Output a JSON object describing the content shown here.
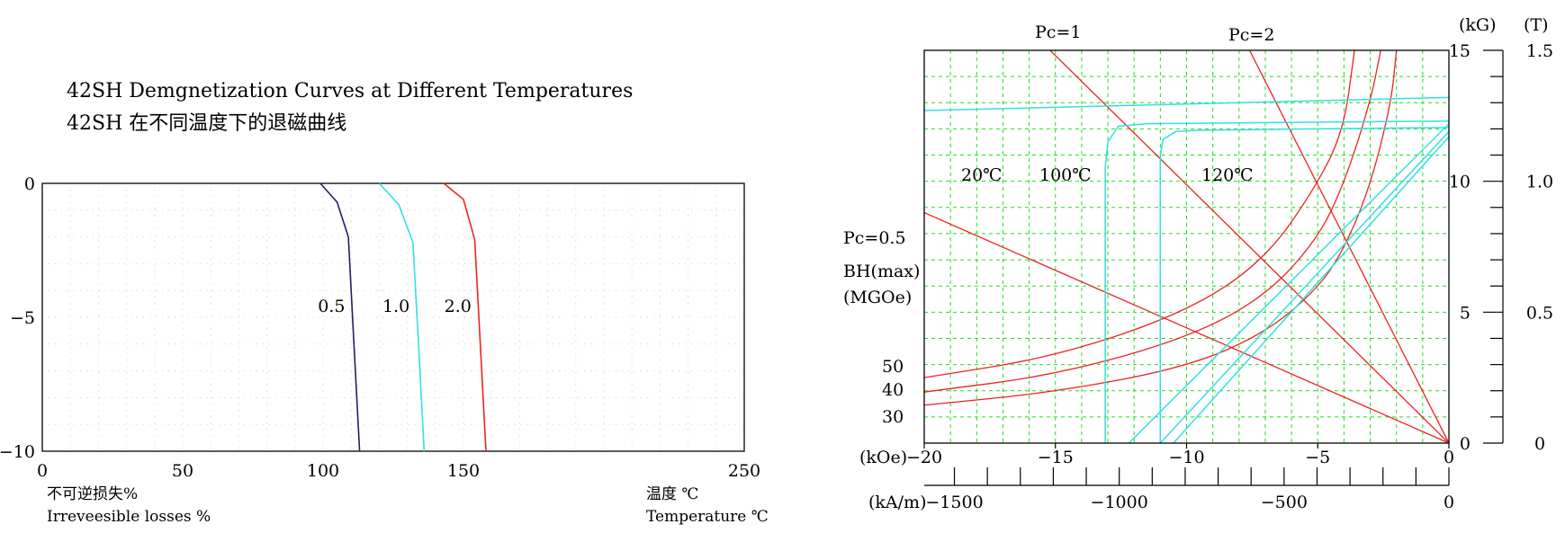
{
  "chart_data": [
    {
      "type": "line",
      "title": "42SH Demgnetization Curves at Different Temperatures",
      "subtitle": "42SH 在不同温度下的退磁曲线",
      "xlabel": "温度 ℃",
      "xlabel_en": "Temperature ℃",
      "ylabel": "不可逆损失%",
      "ylabel_en": "Irreveesible losses %",
      "xlim": [
        0,
        250
      ],
      "ylim": [
        -10,
        0
      ],
      "x_ticks": [
        "0",
        "50",
        "100",
        "150",
        "250"
      ],
      "y_ticks": [
        "0",
        "−5",
        "−10"
      ],
      "grid": true,
      "series": [
        {
          "name": "0.5",
          "color": "#2a1a5e",
          "points": [
            [
              99,
              0
            ],
            [
              105,
              -0.7
            ],
            [
              109,
              -2.0
            ],
            [
              111,
              -6.0
            ],
            [
              113,
              -10
            ]
          ]
        },
        {
          "name": "1.0",
          "color": "#33e0e0",
          "points": [
            [
              120,
              0
            ],
            [
              127,
              -0.8
            ],
            [
              132,
              -2.2
            ],
            [
              134,
              -6.0
            ],
            [
              136,
              -10
            ]
          ]
        },
        {
          "name": "2.0",
          "color": "#ee2222",
          "points": [
            [
              143,
              0
            ],
            [
              150,
              -0.6
            ],
            [
              154,
              -2.1
            ],
            [
              156,
              -6.0
            ],
            [
              158,
              -10
            ]
          ]
        }
      ]
    },
    {
      "type": "line",
      "title": "",
      "grid": true,
      "xlim": [
        -20,
        0
      ],
      "ylim": [
        0,
        15
      ],
      "x_label_koe": "(kOe)",
      "x_label_kam": "(kA/m)",
      "y_label_kg": "(kG)",
      "y_label_t": "(T)",
      "x_ticks_koe": [
        "−20",
        "−15",
        "−10",
        "−5",
        "0"
      ],
      "x_ticks_kam": [
        "−1500",
        "−1000",
        "−500",
        "0"
      ],
      "y_ticks_kg": [
        "0",
        "5",
        "10",
        "15"
      ],
      "y_ticks_t": [
        "0",
        "0.5",
        "1.0",
        "1.5"
      ],
      "bhmax_label": "BH(max)",
      "bhmax_unit": "(MGOe)",
      "bhmax_values": [
        "50",
        "40",
        "30"
      ],
      "pc_labels": [
        "Pc=1",
        "Pc=2",
        "Pc=0.5"
      ],
      "temperature_labels": [
        "20℃",
        "100℃",
        "120℃"
      ],
      "colors": {
        "red": "#ee2222",
        "cyan": "#33e0e0",
        "grid": "#22dd22"
      },
      "load_lines": [
        {
          "name": "Pc=1",
          "from": [
            -15.2,
            15
          ],
          "to": [
            0,
            0
          ]
        },
        {
          "name": "Pc=2",
          "from": [
            -7.6,
            15
          ],
          "to": [
            0,
            0
          ]
        },
        {
          "name": "Pc=0.5",
          "from": [
            -20,
            8.8
          ],
          "to": [
            0,
            0
          ]
        }
      ],
      "bhmax_hyperbolas": [
        {
          "value": "50",
          "points": [
            [
              -20,
              2.5
            ],
            [
              -15,
              3.3
            ],
            [
              -10,
              5.0
            ],
            [
              -7,
              7.0
            ],
            [
              -5,
              9.9
            ],
            [
              -4,
              12.0
            ],
            [
              -3.6,
              15.0
            ]
          ]
        },
        {
          "value": "40",
          "points": [
            [
              -20,
              1.95
            ],
            [
              -15,
              2.6
            ],
            [
              -10,
              4.0
            ],
            [
              -7,
              5.6
            ],
            [
              -5,
              7.8
            ],
            [
              -4,
              9.9
            ],
            [
              -3,
              13.0
            ],
            [
              -2.6,
              15.0
            ]
          ]
        },
        {
          "value": "30",
          "points": [
            [
              -20,
              1.45
            ],
            [
              -15,
              1.95
            ],
            [
              -10,
              2.9
            ],
            [
              -7,
              4.2
            ],
            [
              -5,
              5.9
            ],
            [
              -4,
              7.4
            ],
            [
              -3,
              9.8
            ],
            [
              -2.2,
              13.0
            ],
            [
              -2.0,
              15.0
            ]
          ]
        }
      ],
      "demag_curves": [
        {
          "name": "20℃",
          "points": [
            [
              -20,
              12.7
            ],
            [
              -10,
              12.95
            ],
            [
              0,
              13.2
            ]
          ]
        },
        {
          "name": "100℃",
          "points": [
            [
              -13.1,
              0
            ],
            [
              -13.1,
              10.5
            ],
            [
              -13.0,
              11.5
            ],
            [
              -12.6,
              12.1
            ],
            [
              -11.5,
              12.2
            ],
            [
              -6,
              12.25
            ],
            [
              0,
              12.3
            ]
          ]
        },
        {
          "name": "120℃",
          "points": [
            [
              -11.0,
              0
            ],
            [
              -11.0,
              11.0
            ],
            [
              -10.9,
              11.6
            ],
            [
              -10.4,
              11.9
            ],
            [
              -9.5,
              11.95
            ],
            [
              -5,
              12.0
            ],
            [
              0,
              12.05
            ]
          ]
        },
        {
          "name": "100℃ recoil",
          "points": [
            [
              -12.2,
              0
            ],
            [
              0,
              12.2
            ]
          ]
        },
        {
          "name": "120℃ recoil",
          "points": [
            [
              -11.0,
              0
            ],
            [
              0,
              11.9
            ]
          ]
        },
        {
          "name": "recoil 3",
          "points": [
            [
              -10.5,
              0
            ],
            [
              0,
              11.7
            ]
          ]
        }
      ]
    }
  ]
}
